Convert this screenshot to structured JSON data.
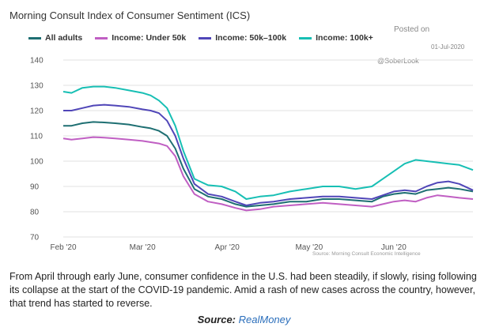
{
  "chart_data": {
    "type": "line",
    "title": "Morning Consult Index of Consumer Sentiment (ICS)",
    "xlabel": "",
    "ylabel": "",
    "ylim": [
      70,
      140
    ],
    "yticks": [
      70,
      80,
      90,
      100,
      110,
      120,
      130,
      140
    ],
    "xlim": [
      "2020-02-01",
      "2020-06-30"
    ],
    "xticks": [
      {
        "label": "Feb '20",
        "date": "2020-02-01"
      },
      {
        "label": "Mar '20",
        "date": "2020-03-01"
      },
      {
        "label": "Apr '20",
        "date": "2020-04-01"
      },
      {
        "label": "May '20",
        "date": "2020-05-01"
      },
      {
        "label": "Jun '20",
        "date": "2020-06-01"
      }
    ],
    "grid": true,
    "legend": "top",
    "series": [
      {
        "name": "All adults",
        "color": "#1e6f72",
        "points": [
          [
            "2020-02-01",
            114
          ],
          [
            "2020-02-04",
            114
          ],
          [
            "2020-02-08",
            115
          ],
          [
            "2020-02-12",
            115.5
          ],
          [
            "2020-02-16",
            115.3
          ],
          [
            "2020-02-20",
            115
          ],
          [
            "2020-02-25",
            114.5
          ],
          [
            "2020-03-01",
            113.5
          ],
          [
            "2020-03-04",
            113
          ],
          [
            "2020-03-07",
            112
          ],
          [
            "2020-03-10",
            110
          ],
          [
            "2020-03-13",
            105
          ],
          [
            "2020-03-16",
            97
          ],
          [
            "2020-03-20",
            89
          ],
          [
            "2020-03-25",
            86
          ],
          [
            "2020-03-30",
            85
          ],
          [
            "2020-04-04",
            83
          ],
          [
            "2020-04-08",
            82
          ],
          [
            "2020-04-13",
            82.5
          ],
          [
            "2020-04-18",
            83
          ],
          [
            "2020-04-24",
            84
          ],
          [
            "2020-04-30",
            84
          ],
          [
            "2020-05-06",
            85
          ],
          [
            "2020-05-12",
            85
          ],
          [
            "2020-05-18",
            84.5
          ],
          [
            "2020-05-24",
            84
          ],
          [
            "2020-05-28",
            86
          ],
          [
            "2020-06-01",
            87
          ],
          [
            "2020-06-05",
            87.5
          ],
          [
            "2020-06-09",
            87
          ],
          [
            "2020-06-13",
            88.5
          ],
          [
            "2020-06-17",
            89
          ],
          [
            "2020-06-21",
            89.5
          ],
          [
            "2020-06-25",
            89
          ],
          [
            "2020-06-30",
            88
          ]
        ]
      },
      {
        "name": "Income: Under 50k",
        "color": "#c05fc3",
        "points": [
          [
            "2020-02-01",
            109
          ],
          [
            "2020-02-04",
            108.5
          ],
          [
            "2020-02-08",
            109
          ],
          [
            "2020-02-12",
            109.5
          ],
          [
            "2020-02-16",
            109.3
          ],
          [
            "2020-02-20",
            109
          ],
          [
            "2020-02-25",
            108.5
          ],
          [
            "2020-03-01",
            108
          ],
          [
            "2020-03-04",
            107.5
          ],
          [
            "2020-03-07",
            107
          ],
          [
            "2020-03-10",
            106
          ],
          [
            "2020-03-13",
            102
          ],
          [
            "2020-03-16",
            94
          ],
          [
            "2020-03-20",
            87
          ],
          [
            "2020-03-25",
            84
          ],
          [
            "2020-03-30",
            83
          ],
          [
            "2020-04-04",
            81.5
          ],
          [
            "2020-04-08",
            80.5
          ],
          [
            "2020-04-13",
            81
          ],
          [
            "2020-04-18",
            82
          ],
          [
            "2020-04-24",
            82.5
          ],
          [
            "2020-04-30",
            83
          ],
          [
            "2020-05-06",
            83.5
          ],
          [
            "2020-05-12",
            83
          ],
          [
            "2020-05-18",
            82.5
          ],
          [
            "2020-05-24",
            82
          ],
          [
            "2020-05-28",
            83
          ],
          [
            "2020-06-01",
            84
          ],
          [
            "2020-06-05",
            84.5
          ],
          [
            "2020-06-09",
            84
          ],
          [
            "2020-06-13",
            85.5
          ],
          [
            "2020-06-17",
            86.5
          ],
          [
            "2020-06-21",
            86
          ],
          [
            "2020-06-25",
            85.5
          ],
          [
            "2020-06-30",
            85
          ]
        ]
      },
      {
        "name": "Income: 50k–100k",
        "color": "#5046b8",
        "points": [
          [
            "2020-02-01",
            120
          ],
          [
            "2020-02-04",
            120
          ],
          [
            "2020-02-08",
            121
          ],
          [
            "2020-02-12",
            122
          ],
          [
            "2020-02-16",
            122.3
          ],
          [
            "2020-02-20",
            122
          ],
          [
            "2020-02-25",
            121.5
          ],
          [
            "2020-03-01",
            120.5
          ],
          [
            "2020-03-04",
            120
          ],
          [
            "2020-03-07",
            119
          ],
          [
            "2020-03-10",
            116
          ],
          [
            "2020-03-13",
            110
          ],
          [
            "2020-03-16",
            101
          ],
          [
            "2020-03-20",
            91
          ],
          [
            "2020-03-25",
            87
          ],
          [
            "2020-03-30",
            86
          ],
          [
            "2020-04-04",
            84
          ],
          [
            "2020-04-08",
            82.5
          ],
          [
            "2020-04-13",
            83.5
          ],
          [
            "2020-04-18",
            84
          ],
          [
            "2020-04-24",
            85
          ],
          [
            "2020-04-30",
            85.5
          ],
          [
            "2020-05-06",
            86
          ],
          [
            "2020-05-12",
            86
          ],
          [
            "2020-05-18",
            85.5
          ],
          [
            "2020-05-24",
            85
          ],
          [
            "2020-05-28",
            86.5
          ],
          [
            "2020-06-01",
            88
          ],
          [
            "2020-06-05",
            88.5
          ],
          [
            "2020-06-09",
            88
          ],
          [
            "2020-06-13",
            90
          ],
          [
            "2020-06-17",
            91.5
          ],
          [
            "2020-06-21",
            92
          ],
          [
            "2020-06-25",
            91
          ],
          [
            "2020-06-30",
            88.5
          ]
        ]
      },
      {
        "name": "Income: 100k+",
        "color": "#17bfb4",
        "points": [
          [
            "2020-02-01",
            127.5
          ],
          [
            "2020-02-04",
            127
          ],
          [
            "2020-02-08",
            129
          ],
          [
            "2020-02-12",
            129.5
          ],
          [
            "2020-02-16",
            129.5
          ],
          [
            "2020-02-20",
            129
          ],
          [
            "2020-02-25",
            128
          ],
          [
            "2020-03-01",
            127
          ],
          [
            "2020-03-04",
            126
          ],
          [
            "2020-03-07",
            124
          ],
          [
            "2020-03-10",
            121
          ],
          [
            "2020-03-13",
            114
          ],
          [
            "2020-03-16",
            104
          ],
          [
            "2020-03-20",
            93
          ],
          [
            "2020-03-25",
            90.5
          ],
          [
            "2020-03-30",
            90
          ],
          [
            "2020-04-04",
            88
          ],
          [
            "2020-04-08",
            85
          ],
          [
            "2020-04-13",
            86
          ],
          [
            "2020-04-18",
            86.5
          ],
          [
            "2020-04-24",
            88
          ],
          [
            "2020-04-30",
            89
          ],
          [
            "2020-05-06",
            90
          ],
          [
            "2020-05-12",
            90
          ],
          [
            "2020-05-18",
            89
          ],
          [
            "2020-05-24",
            90
          ],
          [
            "2020-05-28",
            93
          ],
          [
            "2020-06-01",
            96
          ],
          [
            "2020-06-05",
            99
          ],
          [
            "2020-06-09",
            100.5
          ],
          [
            "2020-06-13",
            100
          ],
          [
            "2020-06-17",
            99.5
          ],
          [
            "2020-06-21",
            99
          ],
          [
            "2020-06-25",
            98.5
          ],
          [
            "2020-06-30",
            96.5
          ]
        ]
      }
    ]
  },
  "legend_labels": {
    "all": "All adults",
    "under50": "Income: Under 50k",
    "mid": "Income: 50k–100k",
    "high": "Income: 100k+"
  },
  "watermark": {
    "posted": "Posted on",
    "date": "01-Jul-2020",
    "handle": "@SoberLook"
  },
  "chart_source": "Source: Morning Consult Economic Intelligence",
  "caption": "From April through early June, consumer confidence in the U.S. had been steadily, if slowly, rising following its collapse at the start of the COVID-19 pandemic. Amid a rash of new cases across the country, however, that trend has started to reverse.",
  "source_prefix": "Source: ",
  "source_name": "RealMoney"
}
